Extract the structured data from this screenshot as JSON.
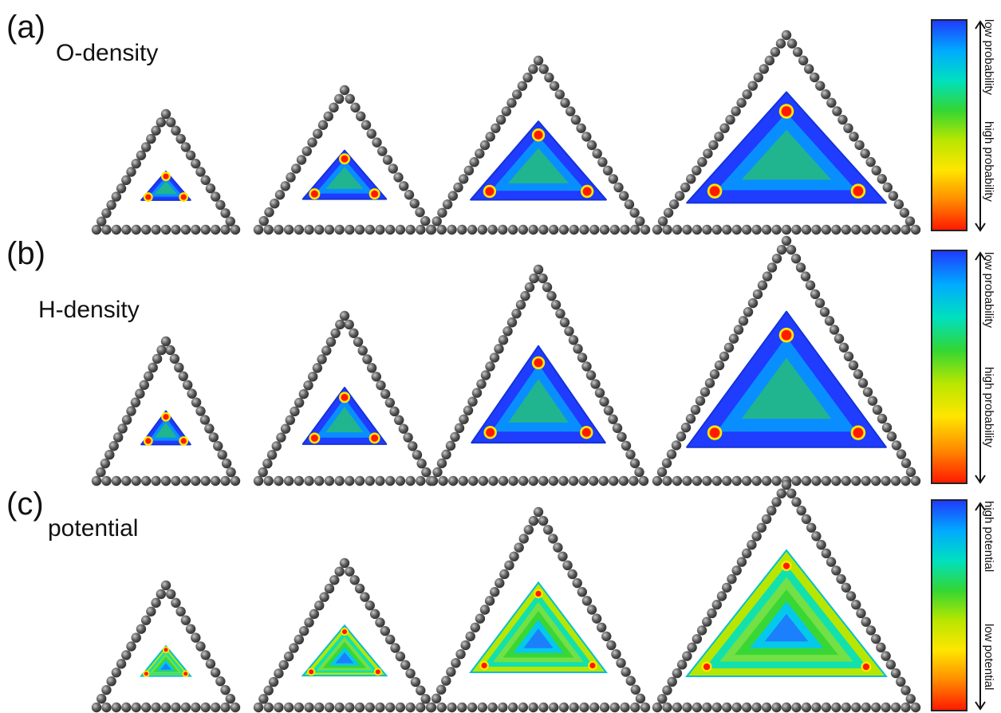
{
  "panels": [
    {
      "letter": "(a)",
      "title": "O-density",
      "kind": "density",
      "legend": {
        "top": "low probability",
        "bottom": "high probability"
      }
    },
    {
      "letter": "(b)",
      "title": "H-density",
      "kind": "density",
      "legend": {
        "top": "low probability",
        "bottom": "high probability"
      }
    },
    {
      "letter": "(c)",
      "title": "potential",
      "kind": "potential",
      "legend": {
        "top": "high potential",
        "bottom": "low potential"
      }
    }
  ],
  "colorbar": {
    "top_color": "#1f3cff",
    "bottom_color": "#ff1a00",
    "stops": [
      "#1f3cff",
      "#00aaff",
      "#00e0c0",
      "#33d633",
      "#b8e600",
      "#ffe600",
      "#ff8c00",
      "#ff1a00"
    ]
  },
  "colors": {
    "atom": "#555555",
    "atom_highlight": "#bbbbbb"
  }
}
